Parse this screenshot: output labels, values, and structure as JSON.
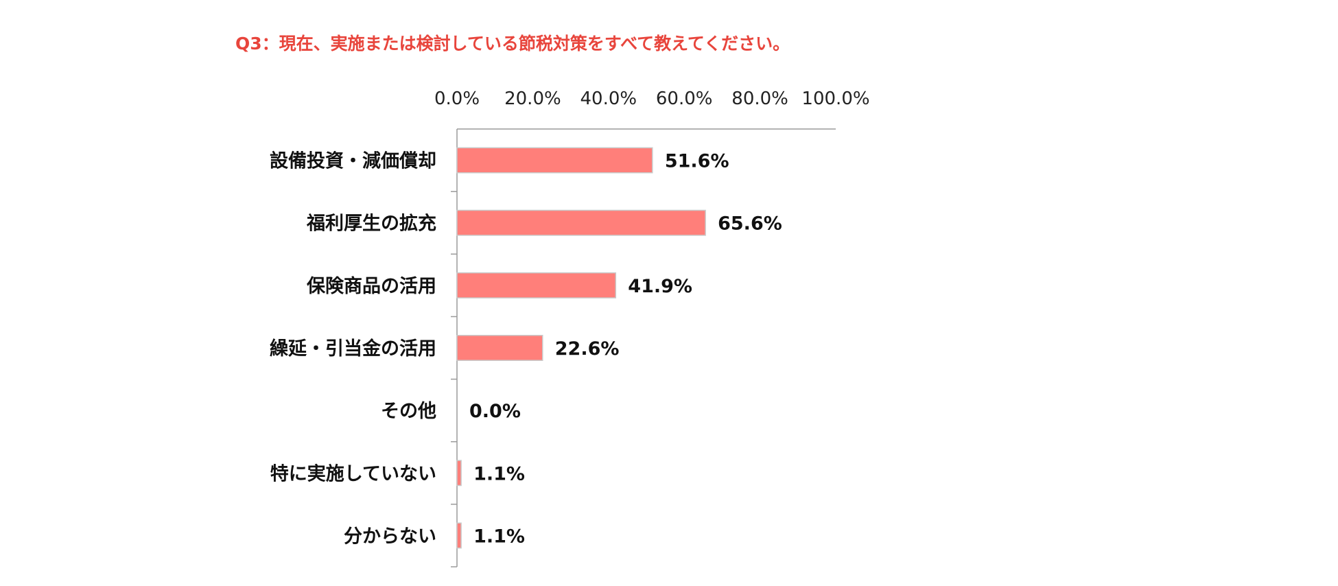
{
  "chart_data": {
    "type": "bar",
    "orientation": "horizontal",
    "title": "Q3：現在、実施または検討している節税対策をすべて教えてください。",
    "categories": [
      "設備投資・減価償却",
      "福利厚生の拡充",
      "保険商品の活用",
      "繰延・引当金の活用",
      "その他",
      "特に実施していない",
      "分からない"
    ],
    "values": [
      51.6,
      65.6,
      41.9,
      22.6,
      0.0,
      1.1,
      1.1
    ],
    "value_labels": [
      "51.6%",
      "65.6%",
      "41.9%",
      "22.6%",
      "0.0%",
      "1.1%",
      "1.1%"
    ],
    "xlim": [
      0,
      100
    ],
    "x_ticks": [
      0,
      20,
      40,
      60,
      80,
      100
    ],
    "x_tick_labels": [
      "0.0%",
      "20.0%",
      "40.0%",
      "60.0%",
      "80.0%",
      "100.0%"
    ],
    "x_axis_position": "top",
    "xlabel": "",
    "ylabel": "",
    "grid": false,
    "legend": "none",
    "colors": {
      "title": "#e8453c",
      "bar_fill": "#ff7f7a",
      "bar_border": "#c9c9c9",
      "axis": "#9a9a9a"
    }
  }
}
